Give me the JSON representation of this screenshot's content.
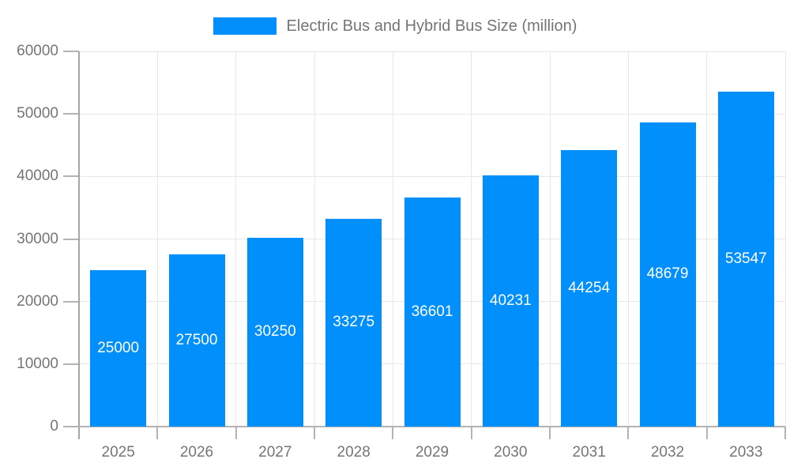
{
  "legend": {
    "items": [
      {
        "label": "Electric Bus and Hybrid Bus Size (million)",
        "color": "#008FFB"
      }
    ]
  },
  "chart_data": {
    "type": "bar",
    "title": "Electric Bus and Hybrid Bus Size (million)",
    "series": [
      {
        "name": "Electric Bus and Hybrid Bus Size (million)",
        "values": [
          25000,
          27500,
          30250,
          33275,
          36601,
          40231,
          44254,
          48679,
          53547
        ]
      }
    ],
    "categories": [
      "2025",
      "2026",
      "2027",
      "2028",
      "2029",
      "2030",
      "2031",
      "2032",
      "2033"
    ],
    "value_labels": [
      "25000",
      "27500",
      "30250",
      "33275",
      "36601",
      "40231",
      "44254",
      "48679",
      "53547"
    ],
    "xlabel": "",
    "ylabel": "",
    "ylim": [
      0,
      60000
    ],
    "yticks": [
      0,
      10000,
      20000,
      30000,
      40000,
      50000,
      60000
    ],
    "ytick_labels": [
      "0",
      "10000",
      "20000",
      "30000",
      "40000",
      "50000",
      "60000"
    ],
    "grid": true,
    "legend_position": "top-center",
    "colors": {
      "bar": "#008FFB",
      "value_label": "#ffffff",
      "axis_label": "#757575",
      "grid_line": "#e7e7e7",
      "axis_line": "#b3b3b3",
      "background": "#ffffff"
    }
  }
}
